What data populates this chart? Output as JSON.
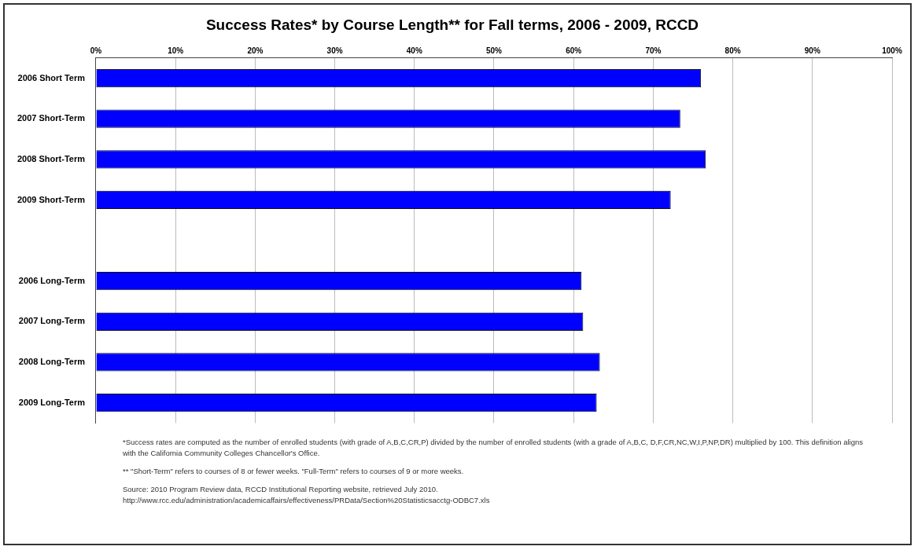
{
  "chart_data": {
    "type": "bar",
    "orientation": "horizontal",
    "title": "Success Rates* by Course Length** for Fall terms, 2006 - 2009, RCCD",
    "categories": [
      "2006 Short Term",
      "2007 Short-Term",
      "2008 Short-Term",
      "2009 Short-Term",
      null,
      "2006 Long-Term",
      "2007 Long-Term",
      "2008 Long-Term",
      "2009 Long-Term"
    ],
    "values": [
      76.0,
      73.4,
      76.6,
      72.2,
      null,
      61.0,
      61.2,
      63.3,
      62.9
    ],
    "color": "#0000ff",
    "xlim": [
      0,
      100
    ],
    "xticks": [
      {
        "value": 0,
        "label": "0%"
      },
      {
        "value": 10,
        "label": "10%"
      },
      {
        "value": 20,
        "label": "20%"
      },
      {
        "value": 30,
        "label": "30%"
      },
      {
        "value": 40,
        "label": "40%"
      },
      {
        "value": 50,
        "label": "50%"
      },
      {
        "value": 60,
        "label": "60%"
      },
      {
        "value": 70,
        "label": "70%"
      },
      {
        "value": 80,
        "label": "80%"
      },
      {
        "value": 90,
        "label": "90%"
      },
      {
        "value": 100,
        "label": "100%"
      }
    ],
    "grid": "x",
    "annotations": [
      "*Success rates are computed as the number of enrolled students (with grade of A,B,C,CR,P) divided by the number of enrolled students (with a grade of A,B,C, D,F,CR,NC,W,I,P,NP,DR) multiplied by 100.  This definition aligns with the California Community Colleges Chancellor's Office.",
      "** \"Short-Term\" refers to courses of 8 or fewer weeks.  \"Full-Term\" refers to courses of 9 or more weeks.",
      "Source: 2010 Program Review data, RCCD Institutional Reporting website, retrieved July 2010.\nhttp://www.rcc.edu/administration/academicaffairs/effectiveness/PRData/Section%20Statisticsacctg-ODBC7.xls"
    ]
  }
}
